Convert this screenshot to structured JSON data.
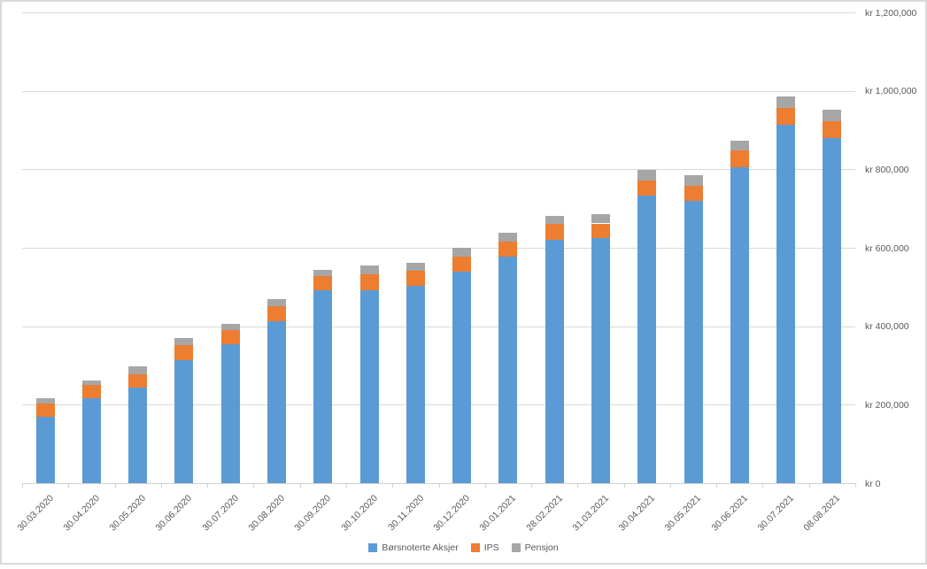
{
  "chart_data": {
    "type": "bar",
    "stacked": true,
    "title": "",
    "xlabel": "",
    "ylabel": "",
    "categories": [
      "30.03.2020",
      "30.04.2020",
      "30.05.2020",
      "30.06.2020",
      "30.07.2020",
      "30.08.2020",
      "30.09.2020",
      "30.10.2020",
      "30.11.2020",
      "30.12.2020",
      "30.01.2021",
      "28.02.2021",
      "31.03.2021",
      "30.04.2021",
      "30.05.2021",
      "30.06.2021",
      "30.07.2021",
      "08.08.2021"
    ],
    "series": [
      {
        "name": "Børsnoterte Aksjer",
        "color": "#5B9BD5",
        "values": [
          170000,
          216000,
          243000,
          314000,
          354000,
          413000,
          492000,
          492000,
          502000,
          538000,
          577000,
          620000,
          624000,
          732000,
          720000,
          806000,
          914000,
          880000
        ]
      },
      {
        "name": "IPS",
        "color": "#ED7D31",
        "values": [
          32000,
          34000,
          35000,
          38000,
          37000,
          38000,
          35000,
          41000,
          39000,
          39000,
          39000,
          40000,
          38000,
          40000,
          39000,
          42000,
          42000,
          43000
        ]
      },
      {
        "name": "Pensjon",
        "color": "#A6A6A6",
        "values": [
          15000,
          11000,
          20000,
          19000,
          15000,
          18000,
          17000,
          22000,
          21000,
          23000,
          22000,
          21000,
          24000,
          26000,
          25000,
          25000,
          29000,
          30000
        ]
      }
    ],
    "y_axis": {
      "side": "right",
      "min": 0,
      "max": 1200000,
      "step": 200000,
      "tick_labels": [
        "kr 0",
        "kr 200,000",
        "kr 400,000",
        "kr 600,000",
        "kr 800,000",
        "kr 1,000,000",
        "kr 1,200,000"
      ]
    },
    "grid": true,
    "legend_position": "bottom",
    "colors": {
      "gridline": "#d9d9d9",
      "axis_text": "#595959",
      "frame_border": "#d9d9d9",
      "background": "#ffffff"
    }
  }
}
